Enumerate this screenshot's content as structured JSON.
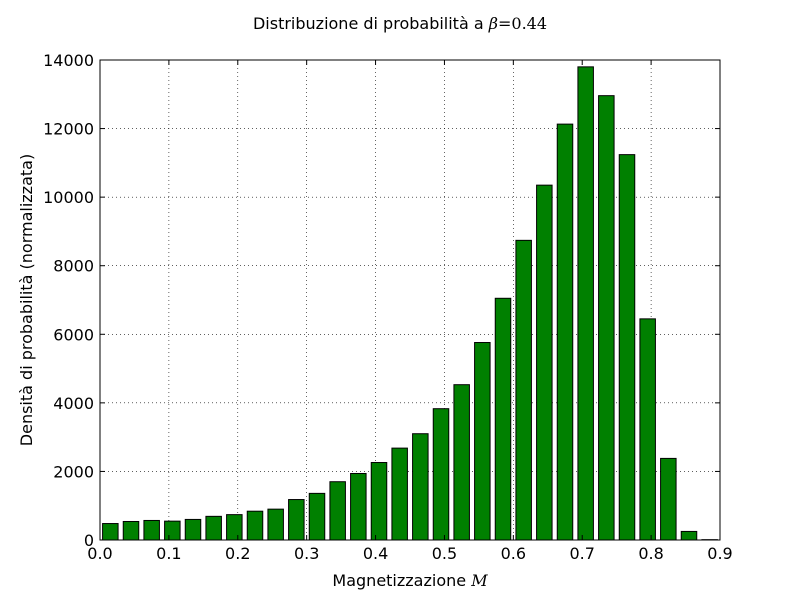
{
  "chart_data": {
    "type": "bar",
    "title": "Distribuzione di probabilità a",
    "title_math": {
      "symbol": "β",
      "rest": "=0.44"
    },
    "xlabel": "Magnetizzazione",
    "xlabel_math": "M",
    "ylabel": "Densità di probabilità (normalizzata)",
    "xlim": [
      0.0,
      0.9
    ],
    "ylim": [
      0,
      14000
    ],
    "xticks": [
      0.0,
      0.1,
      0.2,
      0.3,
      0.4,
      0.5,
      0.6,
      0.7,
      0.8,
      0.9
    ],
    "xtick_labels": [
      "0.0",
      "0.1",
      "0.2",
      "0.3",
      "0.4",
      "0.5",
      "0.6",
      "0.7",
      "0.8",
      "0.9"
    ],
    "yticks": [
      0,
      2000,
      4000,
      6000,
      8000,
      10000,
      12000,
      14000
    ],
    "ytick_labels": [
      "0",
      "2000",
      "4000",
      "6000",
      "8000",
      "10000",
      "12000",
      "14000"
    ],
    "grid": true,
    "bar_color": "#008000",
    "edge_color": "#000000",
    "bin_width": 0.03,
    "bar_width_fraction": 0.75,
    "x": [
      0.015,
      0.045,
      0.075,
      0.105,
      0.135,
      0.165,
      0.195,
      0.225,
      0.255,
      0.285,
      0.315,
      0.345,
      0.375,
      0.405,
      0.435,
      0.465,
      0.495,
      0.525,
      0.555,
      0.585,
      0.615,
      0.645,
      0.675,
      0.705,
      0.735,
      0.765,
      0.795,
      0.825,
      0.855,
      0.885
    ],
    "values": [
      480,
      540,
      570,
      550,
      600,
      690,
      740,
      840,
      900,
      1180,
      1360,
      1700,
      1940,
      2260,
      2680,
      3100,
      3830,
      4530,
      5760,
      7050,
      8740,
      10350,
      12130,
      13800,
      12960,
      11240,
      6450,
      2380,
      250,
      10
    ]
  }
}
